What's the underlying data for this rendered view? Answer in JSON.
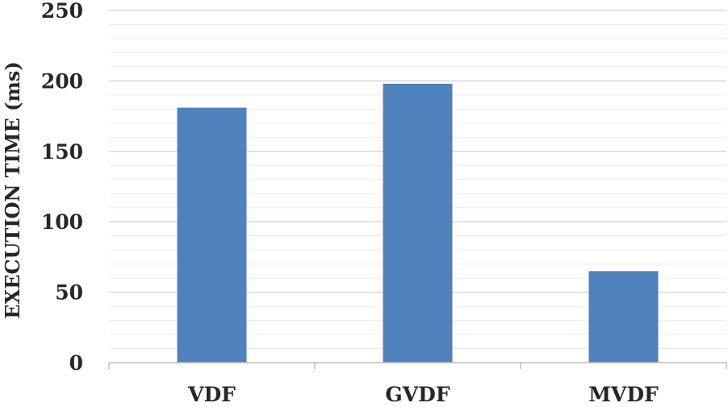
{
  "chart_data": {
    "type": "bar",
    "title": "",
    "xlabel": "",
    "ylabel": "EXECUTION TIME (ms)",
    "categories": [
      "VDF",
      "GVDF",
      "MVDF"
    ],
    "values": [
      181,
      198,
      65
    ],
    "ylim": [
      0,
      250
    ],
    "y_ticks": [
      "0",
      "50",
      "100",
      "150",
      "200",
      "250"
    ],
    "grid": true,
    "minor_grid": true,
    "legend": "none",
    "bar_color": "#4f81bd",
    "grid_color": "#d9d9d9",
    "axis_color": "#bfbfbf",
    "text_color": "#262626"
  }
}
